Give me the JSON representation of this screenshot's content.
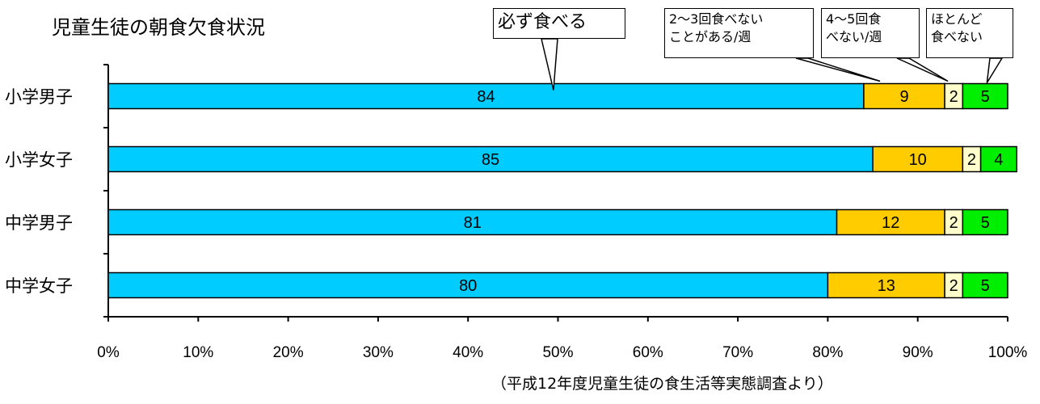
{
  "title": "児童生徒の朝食欠食状況",
  "source": "（平成12年度児童生徒の食生活等実態調査より）",
  "chart_data": {
    "type": "bar",
    "orientation": "horizontal",
    "stacked": true,
    "percent": true,
    "categories": [
      "小学男子",
      "小学女子",
      "中学男子",
      "中学女子"
    ],
    "series": [
      {
        "name": "必ず食べる",
        "values": [
          84,
          85,
          81,
          80
        ],
        "color": "#00CCFF"
      },
      {
        "name": "2～3回食べないことがある/週",
        "values": [
          9,
          10,
          12,
          13
        ],
        "color": "#FFCC00"
      },
      {
        "name": "4～5回食べない/週",
        "values": [
          2,
          2,
          2,
          2
        ],
        "color": "#FFFFCC"
      },
      {
        "name": "ほとんど食べない",
        "values": [
          5,
          4,
          5,
          5
        ],
        "color": "#00EE00"
      }
    ],
    "xlim": [
      0,
      100
    ],
    "xticks": [
      "0%",
      "10%",
      "20%",
      "30%",
      "40%",
      "50%",
      "60%",
      "70%",
      "80%",
      "90%",
      "100%"
    ],
    "legend": "callouts"
  },
  "callouts": [
    {
      "lines": [
        "必ず食べる"
      ]
    },
    {
      "lines": [
        "2～3回食べない",
        "ことがある/週"
      ]
    },
    {
      "lines": [
        "4～5回食",
        "べない/週"
      ]
    },
    {
      "lines": [
        "ほとんど",
        "食べない"
      ]
    }
  ]
}
